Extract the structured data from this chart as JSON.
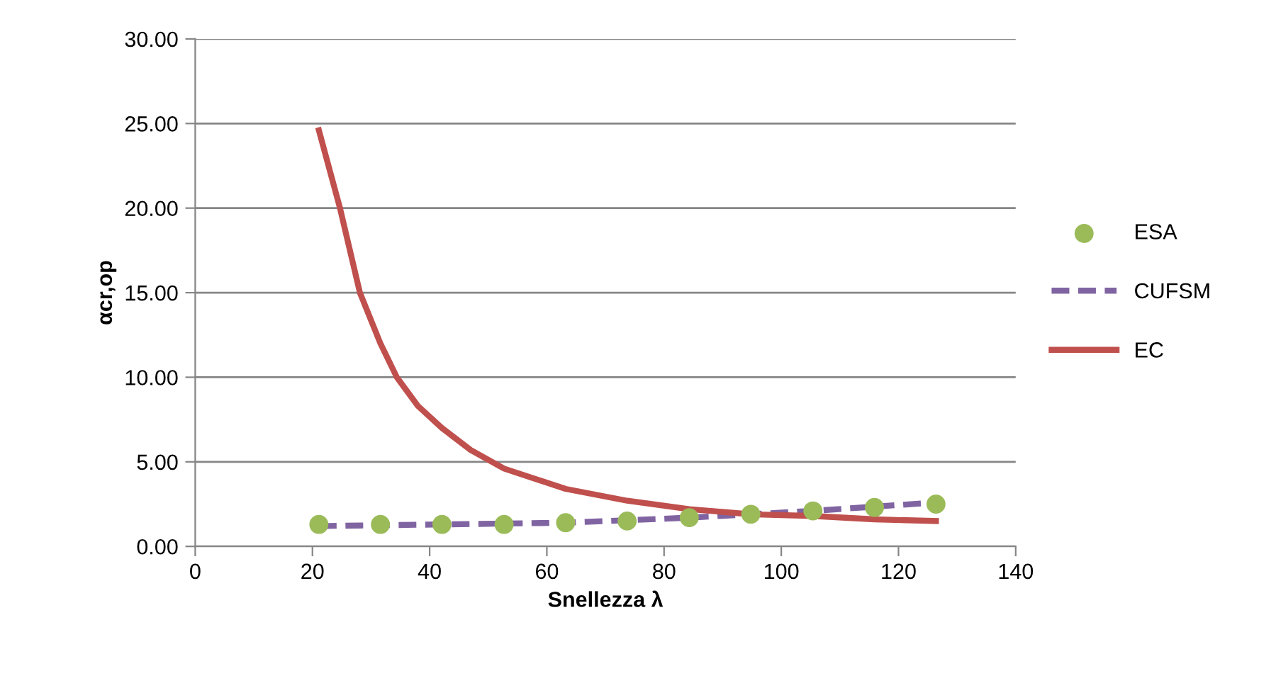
{
  "chart_data": {
    "type": "line",
    "xlabel": "Snellezza λ",
    "ylabel": "αcr,op",
    "xlim": [
      0,
      140
    ],
    "xticks": [
      0,
      20,
      40,
      60,
      80,
      100,
      120,
      140
    ],
    "ylim": [
      0,
      30
    ],
    "yticks": [
      {
        "value": 0,
        "label": "0.00"
      },
      {
        "value": 5,
        "label": "5.00"
      },
      {
        "value": 10,
        "label": "10.00"
      },
      {
        "value": 15,
        "label": "15.00"
      },
      {
        "value": 20,
        "label": "20.00"
      },
      {
        "value": 25,
        "label": "25.00"
      },
      {
        "value": 30,
        "label": "30.00"
      }
    ],
    "grid": "y",
    "legend": "right",
    "series": [
      {
        "name": "ESA",
        "type": "scatter",
        "marker": "circle",
        "color": "#9bbb59",
        "x": [
          21.1,
          31.6,
          42.1,
          52.7,
          63.2,
          73.7,
          84.3,
          94.8,
          105.4,
          115.9,
          126.4
        ],
        "values": [
          1.3,
          1.3,
          1.3,
          1.3,
          1.4,
          1.5,
          1.7,
          1.9,
          2.1,
          2.3,
          2.5
        ]
      },
      {
        "name": "CUFSM",
        "line_style": "dashed",
        "color": "#8064a2",
        "x": [
          21.1,
          42.1,
          63.2,
          84.3,
          105.4,
          126.4
        ],
        "values": [
          1.2,
          1.3,
          1.4,
          1.7,
          2.1,
          2.6
        ]
      },
      {
        "name": "EC",
        "line_style": "solid",
        "color": "#c0504d",
        "x": [
          21.1,
          24.7,
          28.1,
          31.6,
          34.4,
          38.0,
          42.1,
          47.0,
          52.7,
          63.2,
          73.7,
          84.3,
          94.8,
          105.4,
          115.9,
          126.4
        ],
        "values": [
          24.6,
          20,
          15,
          12,
          10,
          8.3,
          7,
          5.7,
          4.6,
          3.4,
          2.7,
          2.2,
          1.9,
          1.8,
          1.6,
          1.5
        ]
      }
    ]
  }
}
